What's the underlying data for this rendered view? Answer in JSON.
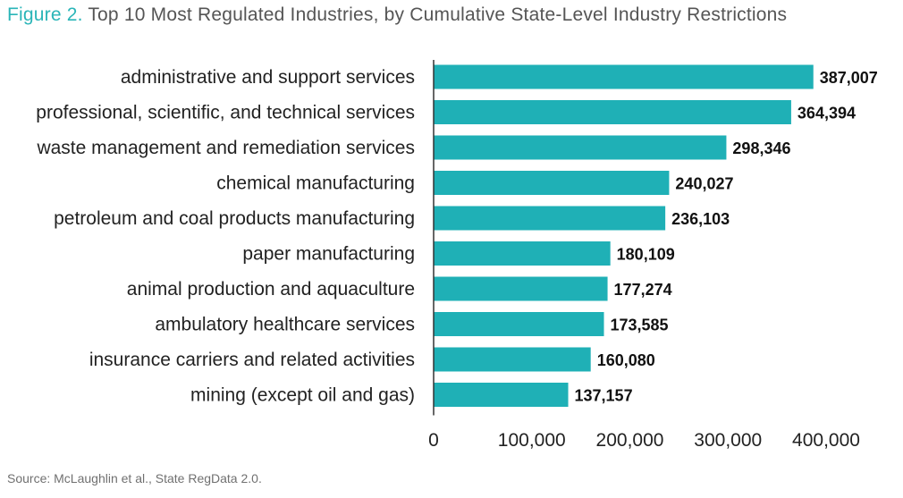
{
  "figure": {
    "label": "Figure 2.",
    "title": "Top 10 Most Regulated Industries, by Cumulative State-Level Industry Restrictions",
    "source": "Source: McLaughlin et al., State RegData 2.0."
  },
  "colors": {
    "bar": "#1fb0b6",
    "accent": "#2ab5b8"
  },
  "chart_data": {
    "type": "bar",
    "orientation": "horizontal",
    "categories": [
      "administrative and support services",
      "professional, scientific, and technical services",
      "waste management and remediation services",
      "chemical manufacturing",
      "petroleum and coal products manufacturing",
      "paper manufacturing",
      "animal production and aquaculture",
      "ambulatory healthcare services",
      "insurance carriers and related activities",
      "mining (except oil and gas)"
    ],
    "values": [
      387007,
      364394,
      298346,
      240027,
      236103,
      180109,
      177274,
      173585,
      160080,
      137157
    ],
    "value_labels": [
      "387,007",
      "364,394",
      "298,346",
      "240,027",
      "236,103",
      "180,109",
      "177,274",
      "173,585",
      "160,080",
      "137,157"
    ],
    "xlim": [
      0,
      400000
    ],
    "x_ticks": [
      0,
      100000,
      200000,
      300000,
      400000
    ],
    "x_tick_labels": [
      "0",
      "100,000",
      "200,000",
      "300,000",
      "400,000"
    ],
    "grid": false,
    "legend": "none"
  }
}
